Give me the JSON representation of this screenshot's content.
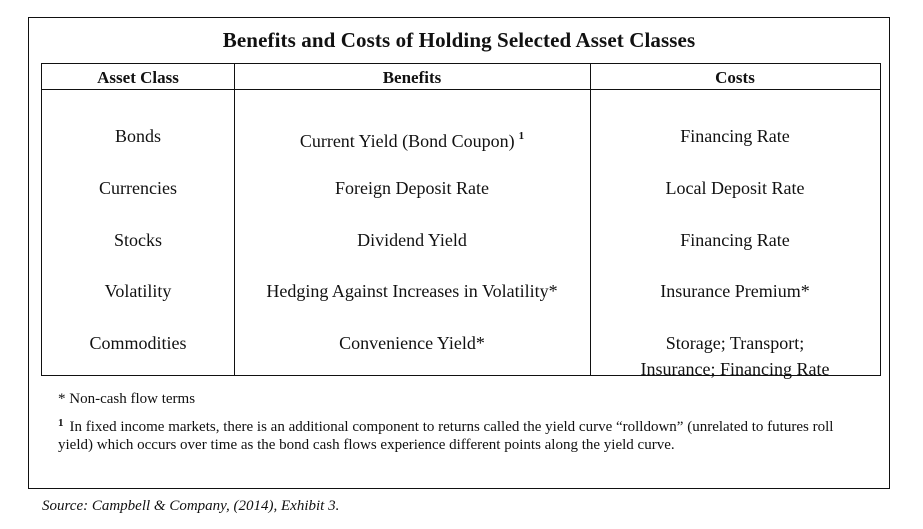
{
  "title": "Benefits and Costs of Holding Selected Asset Classes",
  "table": {
    "headers": [
      "Asset Class",
      "Benefits",
      "Costs"
    ],
    "rows": [
      {
        "asset": "Bonds",
        "benefit": "Current Yield (Bond Coupon)",
        "benefit_sup": "1",
        "cost": "Financing Rate"
      },
      {
        "asset": "Currencies",
        "benefit": "Foreign Deposit Rate",
        "cost": "Local Deposit Rate"
      },
      {
        "asset": "Stocks",
        "benefit": "Dividend Yield",
        "cost": "Financing Rate"
      },
      {
        "asset": "Volatility",
        "benefit": "Hedging Against Increases in Volatility*",
        "cost": "Insurance Premium*"
      },
      {
        "asset": "Commodities",
        "benefit": "Convenience Yield*",
        "cost_line1": "Storage; Transport;",
        "cost_line2": "Insurance; Financing Rate"
      }
    ]
  },
  "notes": {
    "non_cash": "* Non-cash flow terms",
    "footnote_marker": "1",
    "footnote_text": "In fixed income markets, there is an additional component to returns called the yield curve “rolldown” (unrelated to futures roll yield) which occurs over time as the bond cash flows experience different points along the yield curve."
  },
  "source": "Source:  Campbell & Company, (2014), Exhibit 3."
}
